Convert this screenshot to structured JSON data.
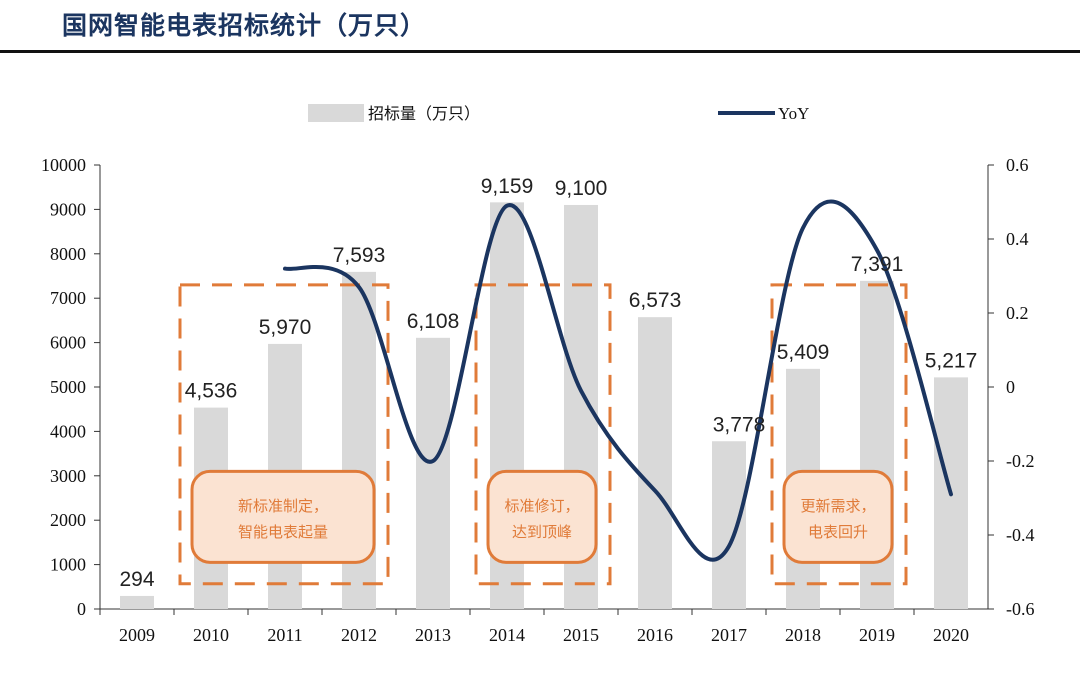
{
  "header": {
    "title": "国网智能电表招标统计（万只）"
  },
  "chart_data": {
    "type": "bar",
    "title": "国网智能电表招标统计（万只）",
    "categories": [
      "2009",
      "2010",
      "2011",
      "2012",
      "2013",
      "2014",
      "2015",
      "2016",
      "2017",
      "2018",
      "2019",
      "2020"
    ],
    "series": [
      {
        "name": "招标量（万只）",
        "type": "bar",
        "axis": "left",
        "values": [
          294,
          4536,
          5970,
          7593,
          6108,
          9159,
          9100,
          6573,
          3778,
          5409,
          7391,
          5217
        ],
        "labels": [
          "294",
          "4,536",
          "5,970",
          "7,593",
          "6,108",
          "9,159",
          "9,100",
          "6,573",
          "3,778",
          "5,409",
          "7,391",
          "5,217"
        ],
        "color": "#d9d9d9"
      },
      {
        "name": "YoY",
        "type": "line",
        "axis": "right",
        "x": [
          "2011",
          "2012",
          "2013",
          "2014",
          "2015",
          "2016",
          "2017",
          "2018",
          "2019",
          "2020"
        ],
        "values": [
          0.32,
          0.27,
          -0.2,
          0.49,
          -0.01,
          -0.28,
          -0.43,
          0.43,
          0.37,
          -0.29
        ],
        "color": "#1b3560"
      }
    ],
    "left_axis": {
      "ylim": [
        0,
        10000
      ],
      "ticks": [
        "0",
        "1000",
        "2000",
        "3000",
        "4000",
        "5000",
        "6000",
        "7000",
        "8000",
        "9000",
        "10000"
      ]
    },
    "right_axis": {
      "ylim": [
        -0.6,
        0.6
      ],
      "ticks": [
        "-0.6",
        "-0.4",
        "-0.2",
        "0",
        "0.2",
        "0.4",
        "0.6"
      ]
    },
    "legend": {
      "placement": "top-center",
      "bar_label": "招标量（万只）",
      "line_label": "YoY"
    },
    "annotations": [
      {
        "years": [
          "2010",
          "2012"
        ],
        "text_line1": "新标准制定，",
        "text_line2": "智能电表起量"
      },
      {
        "years": [
          "2014",
          "2015"
        ],
        "text_line1": "标准修订，",
        "text_line2": "达到顶峰"
      },
      {
        "years": [
          "2018",
          "2019"
        ],
        "text_line1": "更新需求，",
        "text_line2": "电表回升"
      }
    ],
    "colors": {
      "accent": "#e07b39",
      "note_fill": "#fbe3d2",
      "line": "#1b3560",
      "bar": "#d9d9d9"
    }
  }
}
